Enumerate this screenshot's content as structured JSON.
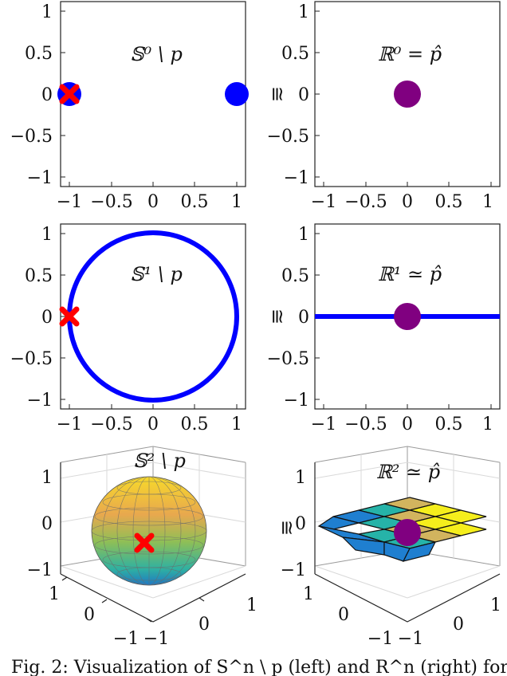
{
  "caption": "Fig. 2: Visualization of S^n \\ p (left) and R^n (right) for",
  "colors": {
    "blue": "#0000ff",
    "red": "#ff0000",
    "purple": "#800080",
    "axis": "#222222",
    "grid": "#cfcfcf"
  },
  "chart_data": [
    {
      "id": "s0",
      "type": "scatter",
      "title": "𝕊⁰ \\ p",
      "xlim": [
        -1.1,
        1.1
      ],
      "ylim": [
        -1.1,
        1.1
      ],
      "xticks": [
        "−1",
        "−0.5",
        "0",
        "0.5",
        "1"
      ],
      "yticks": [
        "1",
        "0.5",
        "0",
        "−0.5",
        "−1"
      ],
      "points": [
        {
          "x": -1,
          "y": 0,
          "color": "blue"
        },
        {
          "x": 1,
          "y": 0,
          "color": "blue"
        }
      ],
      "removed": [
        {
          "x": -1,
          "y": 0
        }
      ]
    },
    {
      "id": "r0",
      "type": "scatter",
      "title": "ℝ⁰ = p̂",
      "relation": "≅",
      "xlim": [
        -1.1,
        1.1
      ],
      "ylim": [
        -1.1,
        1.1
      ],
      "xticks": [
        "−1",
        "−0.5",
        "0",
        "0.5",
        "1"
      ],
      "yticks": [
        "1",
        "0.5",
        "0",
        "−0.5",
        "−1"
      ],
      "points": [
        {
          "x": 0,
          "y": 0,
          "color": "purple"
        }
      ]
    },
    {
      "id": "s1",
      "type": "line",
      "title": "𝕊¹ \\ p",
      "xlim": [
        -1.1,
        1.1
      ],
      "ylim": [
        -1.1,
        1.1
      ],
      "xticks": [
        "−1",
        "−0.5",
        "0",
        "0.5",
        "1"
      ],
      "yticks": [
        "1",
        "0.5",
        "0",
        "−0.5",
        "−1"
      ],
      "curve": "unit-circle",
      "removed": [
        {
          "x": -1,
          "y": 0
        }
      ]
    },
    {
      "id": "r1",
      "type": "line",
      "title": "ℝ¹ ≃ p̂",
      "relation": "≅",
      "xlim": [
        -1.1,
        1.1
      ],
      "ylim": [
        -1.1,
        1.1
      ],
      "xticks": [
        "−1",
        "−0.5",
        "0",
        "0.5",
        "1"
      ],
      "yticks": [
        "1",
        "0.5",
        "0",
        "−0.5",
        "−1"
      ],
      "line_y": 0,
      "points": [
        {
          "x": 0,
          "y": 0,
          "color": "purple"
        }
      ]
    },
    {
      "id": "s2",
      "type": "surface",
      "title": "𝕊² \\ p",
      "zticks": [
        "1",
        "0",
        "−1"
      ],
      "yticks": [
        "1",
        "0",
        "−1"
      ],
      "xticks": [
        "−1",
        "0",
        "1"
      ],
      "surface": "unit-sphere",
      "removed": [
        {
          "x": 0,
          "y": -1,
          "z": -0.4
        }
      ]
    },
    {
      "id": "r2",
      "type": "surface",
      "title": "ℝ² ≃ p̂",
      "relation": "≅",
      "zticks": [
        "1",
        "0",
        "−1"
      ],
      "yticks": [
        "1",
        "0",
        "−1"
      ],
      "xticks": [
        "−1",
        "0",
        "1"
      ],
      "surface": "plane",
      "points": [
        {
          "x": 0,
          "y": 0,
          "z": 0,
          "color": "purple"
        }
      ]
    }
  ]
}
